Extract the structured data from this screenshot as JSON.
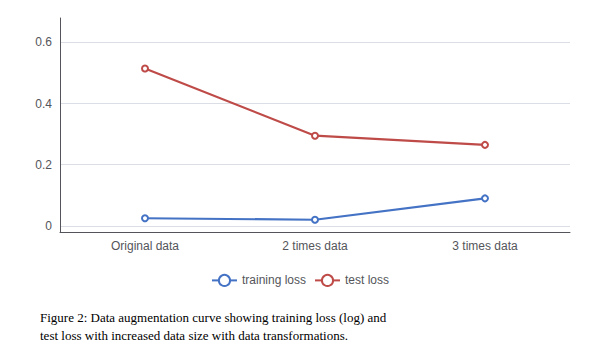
{
  "chart_data": {
    "type": "line",
    "categories": [
      "Original data",
      "2 times data",
      "3 times data"
    ],
    "series": [
      {
        "name": "training loss",
        "color": "#4472C4",
        "values": [
          0.025,
          0.02,
          0.09
        ]
      },
      {
        "name": "test loss",
        "color": "#BE4B48",
        "values": [
          0.515,
          0.295,
          0.265
        ]
      }
    ],
    "ylim": [
      -0.02,
      0.68
    ],
    "yticks": [
      0,
      0.2,
      0.4,
      0.6
    ],
    "grid": true,
    "legend": "bottom",
    "caption": "Figure 2: Data augmentation curve showing training loss (log) and\ntest loss with increased data size with data transformations."
  }
}
